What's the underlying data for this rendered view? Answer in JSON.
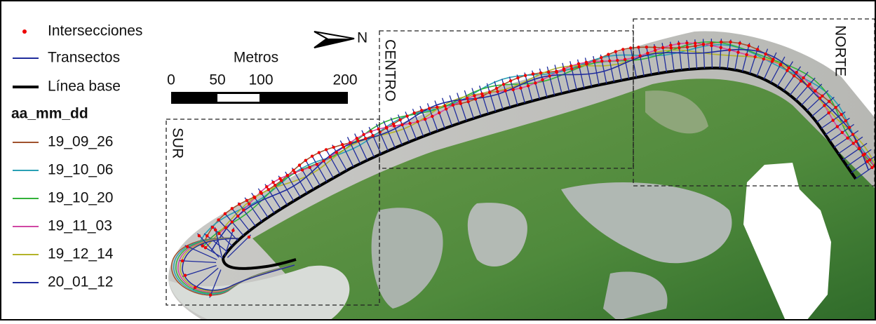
{
  "legend": {
    "items": [
      {
        "label": "Intersecciones"
      },
      {
        "label": "Transectos"
      },
      {
        "label": "Línea base"
      }
    ],
    "group_title": "aa_mm_dd",
    "dates": [
      {
        "label": "19_09_26",
        "color": "#a0522d"
      },
      {
        "label": "19_10_06",
        "color": "#2aa0b4"
      },
      {
        "label": "19_10_20",
        "color": "#33b23a"
      },
      {
        "label": "19_11_03",
        "color": "#d048a4"
      },
      {
        "label": "19_12_14",
        "color": "#b3b32a"
      },
      {
        "label": "20_01_12",
        "color": "#1f2c9c"
      }
    ]
  },
  "scale_bar": {
    "title": "Metros",
    "labels": [
      "0",
      "50",
      "100",
      "200"
    ]
  },
  "north": "N",
  "zones": [
    "SUR",
    "CENTRO",
    "NORTE"
  ]
}
